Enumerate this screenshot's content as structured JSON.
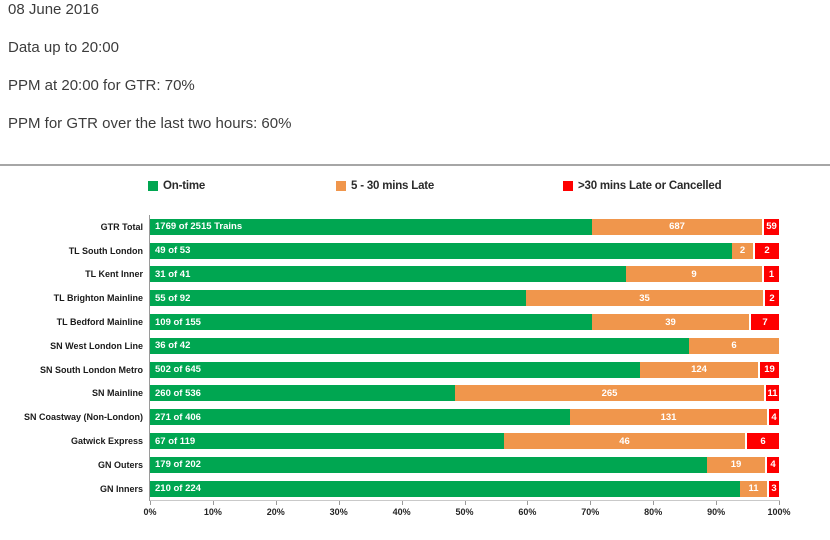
{
  "header": {
    "date": "08 June 2016",
    "data_up_to": "Data up to 20:00",
    "ppm_current": "PPM at 20:00 for GTR: 70%",
    "ppm_last_two_hours": "PPM for GTR over the last two hours: 60%"
  },
  "colors": {
    "on_time": "#00A651",
    "late": "#F0964C",
    "cancelled": "#FE0000",
    "divider": "#A6A6A6",
    "axis": "#9A9A9A"
  },
  "chart_data": {
    "type": "bar",
    "orientation": "horizontal",
    "stacked": "100%",
    "legend_position": "top",
    "grid": false,
    "legend": [
      {
        "label": "On-time",
        "color_key": "on_time"
      },
      {
        "label": "5 - 30 mins Late",
        "color_key": "late"
      },
      {
        "label": ">30 mins Late or Cancelled",
        "color_key": "cancelled"
      }
    ],
    "categories": [
      "GTR Total",
      "TL South London",
      "TL Kent Inner",
      "TL Brighton Mainline",
      "TL Bedford Mainline",
      "SN West London Line",
      "SN South London Metro",
      "SN Mainline",
      "SN Coastway (Non-London)",
      "Gatwick Express",
      "GN Outers",
      "GN Inners"
    ],
    "totals": [
      2515,
      53,
      41,
      92,
      155,
      42,
      645,
      536,
      406,
      119,
      202,
      224
    ],
    "series": [
      {
        "name": "On-time",
        "values": [
          1769,
          49,
          31,
          55,
          109,
          36,
          502,
          260,
          271,
          67,
          179,
          210
        ],
        "labels": [
          "1769 of 2515 Trains",
          "49 of 53",
          "31 of 41",
          "55 of 92",
          "109 of 155",
          "36 of 42",
          "502 of 645",
          "260 of 536",
          "271 of 406",
          "67 of 119",
          "179 of 202",
          "210 of 224"
        ]
      },
      {
        "name": "5 - 30 mins Late",
        "values": [
          687,
          2,
          9,
          35,
          39,
          6,
          124,
          265,
          131,
          46,
          19,
          11
        ]
      },
      {
        "name": ">30 mins Late or Cancelled",
        "values": [
          59,
          2,
          1,
          2,
          7,
          0,
          19,
          11,
          4,
          6,
          4,
          3
        ]
      }
    ],
    "x_axis": {
      "ticks": [
        "0%",
        "10%",
        "20%",
        "30%",
        "40%",
        "50%",
        "60%",
        "70%",
        "80%",
        "90%",
        "100%"
      ],
      "min": 0,
      "max": 100
    }
  }
}
